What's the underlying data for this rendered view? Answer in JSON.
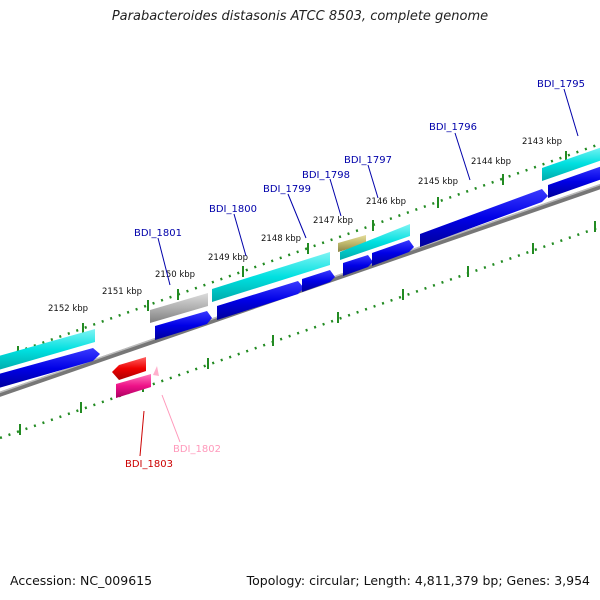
{
  "title": "Parabacteroides distasonis ATCC 8503, complete genome",
  "footer": {
    "accession": "Accession: NC_009615",
    "stats": "Topology: circular; Length: 4,811,379 bp; Genes: 3,954"
  },
  "kbp_labels": [
    "2152 kbp",
    "2151 kbp",
    "2150 kbp",
    "2149 kbp",
    "2148 kbp",
    "2147 kbp",
    "2146 kbp",
    "2145 kbp",
    "2144 kbp",
    "2143 kbp"
  ],
  "genes": [
    {
      "label": "BDI_1795",
      "color": "#0000aa"
    },
    {
      "label": "BDI_1796",
      "color": "#0000aa"
    },
    {
      "label": "BDI_1797",
      "color": "#0000aa"
    },
    {
      "label": "BDI_1798",
      "color": "#0000aa"
    },
    {
      "label": "BDI_1799",
      "color": "#0000aa"
    },
    {
      "label": "BDI_1800",
      "color": "#0000aa"
    },
    {
      "label": "BDI_1801",
      "color": "#0000aa"
    },
    {
      "label": "BDI_1802",
      "color": "#ff99bb"
    },
    {
      "label": "BDI_1803",
      "color": "#cc0000"
    }
  ],
  "colors": {
    "tick": "#228b22",
    "backbone": "#808080",
    "cds_dark": "#0000dd",
    "cds_cyan": "#00dddd",
    "gray_feature": "#a0a0a0",
    "olive_feature": "#bdb76b",
    "red_feature": "#ee0000",
    "pink_feature": "#ee1188"
  }
}
